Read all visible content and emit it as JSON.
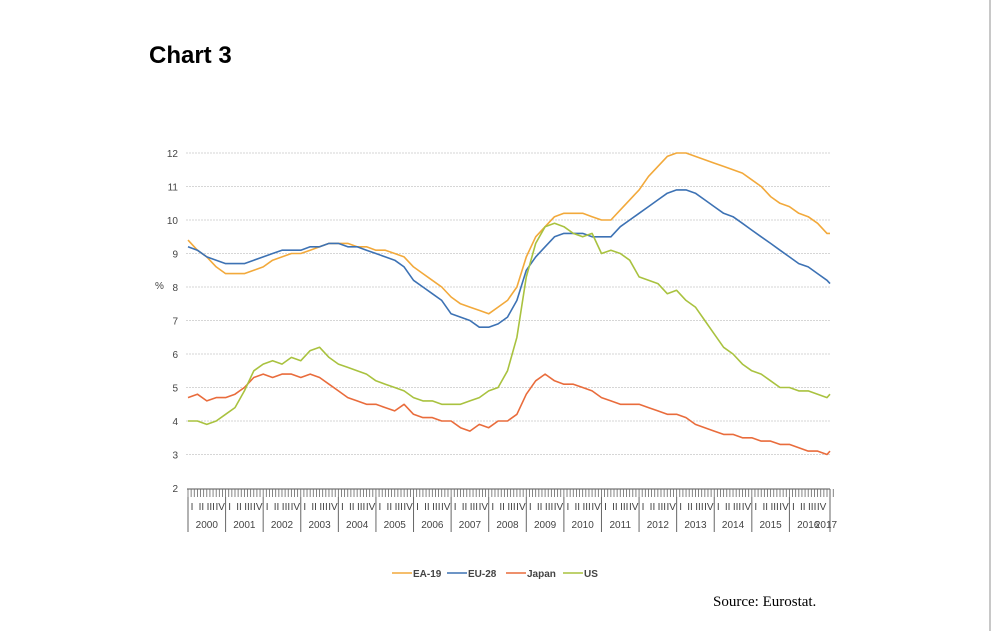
{
  "page": {
    "title": "Chart 3",
    "source": "Source: Eurostat."
  },
  "chart_data": {
    "type": "line",
    "title": "Chart 3",
    "xlabel": "",
    "ylabel": "%",
    "ylim": [
      2,
      12
    ],
    "yticks": [
      2,
      3,
      4,
      5,
      6,
      7,
      8,
      9,
      10,
      11,
      12
    ],
    "xlim": [
      2000,
      2017.17
    ],
    "year_labels": [
      "2000",
      "2001",
      "2002",
      "2003",
      "2004",
      "2005",
      "2006",
      "2007",
      "2008",
      "2009",
      "2010",
      "2011",
      "2012",
      "2013",
      "2014",
      "2015",
      "2016",
      "2017"
    ],
    "quarter_labels": [
      "I",
      "II",
      "III",
      "IV"
    ],
    "grid": true,
    "legend_position": "bottom",
    "x": [
      2000.0,
      2000.25,
      2000.5,
      2000.75,
      2001.0,
      2001.25,
      2001.5,
      2001.75,
      2002.0,
      2002.25,
      2002.5,
      2002.75,
      2003.0,
      2003.25,
      2003.5,
      2003.75,
      2004.0,
      2004.25,
      2004.5,
      2004.75,
      2005.0,
      2005.25,
      2005.5,
      2005.75,
      2006.0,
      2006.25,
      2006.5,
      2006.75,
      2007.0,
      2007.25,
      2007.5,
      2007.75,
      2008.0,
      2008.25,
      2008.5,
      2008.75,
      2009.0,
      2009.25,
      2009.5,
      2009.75,
      2010.0,
      2010.25,
      2010.5,
      2010.75,
      2011.0,
      2011.25,
      2011.5,
      2011.75,
      2012.0,
      2012.25,
      2012.5,
      2012.75,
      2013.0,
      2013.25,
      2013.5,
      2013.75,
      2014.0,
      2014.25,
      2014.5,
      2014.75,
      2015.0,
      2015.25,
      2015.5,
      2015.75,
      2016.0,
      2016.25,
      2016.5,
      2016.75,
      2017.0,
      2017.08
    ],
    "series": [
      {
        "name": "EA-19",
        "color": "#f2a93b",
        "values": [
          9.4,
          9.1,
          8.9,
          8.6,
          8.4,
          8.4,
          8.4,
          8.5,
          8.6,
          8.8,
          8.9,
          9.0,
          9.0,
          9.1,
          9.2,
          9.3,
          9.3,
          9.3,
          9.2,
          9.2,
          9.1,
          9.1,
          9.0,
          8.9,
          8.6,
          8.4,
          8.2,
          8.0,
          7.7,
          7.5,
          7.4,
          7.3,
          7.2,
          7.4,
          7.6,
          8.0,
          8.9,
          9.5,
          9.8,
          10.1,
          10.2,
          10.2,
          10.2,
          10.1,
          10.0,
          10.0,
          10.3,
          10.6,
          10.9,
          11.3,
          11.6,
          11.9,
          12.0,
          12.0,
          11.9,
          11.8,
          11.7,
          11.6,
          11.5,
          11.4,
          11.2,
          11.0,
          10.7,
          10.5,
          10.4,
          10.2,
          10.1,
          9.9,
          9.6,
          9.6
        ]
      },
      {
        "name": "EU-28",
        "color": "#3d72b4",
        "values": [
          9.2,
          9.1,
          8.9,
          8.8,
          8.7,
          8.7,
          8.7,
          8.8,
          8.9,
          9.0,
          9.1,
          9.1,
          9.1,
          9.2,
          9.2,
          9.3,
          9.3,
          9.2,
          9.2,
          9.1,
          9.0,
          8.9,
          8.8,
          8.6,
          8.2,
          8.0,
          7.8,
          7.6,
          7.2,
          7.1,
          7.0,
          6.8,
          6.8,
          6.9,
          7.1,
          7.6,
          8.5,
          8.9,
          9.2,
          9.5,
          9.6,
          9.6,
          9.6,
          9.5,
          9.5,
          9.5,
          9.8,
          10.0,
          10.2,
          10.4,
          10.6,
          10.8,
          10.9,
          10.9,
          10.8,
          10.6,
          10.4,
          10.2,
          10.1,
          9.9,
          9.7,
          9.5,
          9.3,
          9.1,
          8.9,
          8.7,
          8.6,
          8.4,
          8.2,
          8.1
        ]
      },
      {
        "name": "Japan",
        "color": "#e96c3c",
        "values": [
          4.7,
          4.8,
          4.6,
          4.7,
          4.7,
          4.8,
          5.0,
          5.3,
          5.4,
          5.3,
          5.4,
          5.4,
          5.3,
          5.4,
          5.3,
          5.1,
          4.9,
          4.7,
          4.6,
          4.5,
          4.5,
          4.4,
          4.3,
          4.5,
          4.2,
          4.1,
          4.1,
          4.0,
          4.0,
          3.8,
          3.7,
          3.9,
          3.8,
          4.0,
          4.0,
          4.2,
          4.8,
          5.2,
          5.4,
          5.2,
          5.1,
          5.1,
          5.0,
          4.9,
          4.7,
          4.6,
          4.5,
          4.5,
          4.5,
          4.4,
          4.3,
          4.2,
          4.2,
          4.1,
          3.9,
          3.8,
          3.7,
          3.6,
          3.6,
          3.5,
          3.5,
          3.4,
          3.4,
          3.3,
          3.3,
          3.2,
          3.1,
          3.1,
          3.0,
          3.1
        ]
      },
      {
        "name": "US",
        "color": "#a9c23f",
        "values": [
          4.0,
          4.0,
          3.9,
          4.0,
          4.2,
          4.4,
          4.9,
          5.5,
          5.7,
          5.8,
          5.7,
          5.9,
          5.8,
          6.1,
          6.2,
          5.9,
          5.7,
          5.6,
          5.5,
          5.4,
          5.2,
          5.1,
          5.0,
          4.9,
          4.7,
          4.6,
          4.6,
          4.5,
          4.5,
          4.5,
          4.6,
          4.7,
          4.9,
          5.0,
          5.5,
          6.5,
          8.3,
          9.3,
          9.8,
          9.9,
          9.8,
          9.6,
          9.5,
          9.6,
          9.0,
          9.1,
          9.0,
          8.8,
          8.3,
          8.2,
          8.1,
          7.8,
          7.9,
          7.6,
          7.4,
          7.0,
          6.6,
          6.2,
          6.0,
          5.7,
          5.5,
          5.4,
          5.2,
          5.0,
          5.0,
          4.9,
          4.9,
          4.8,
          4.7,
          4.8
        ]
      }
    ]
  }
}
